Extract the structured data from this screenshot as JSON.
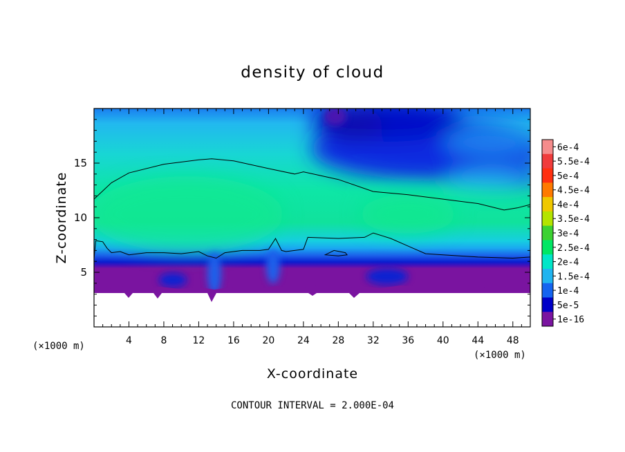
{
  "chart_data": {
    "type": "heatmap",
    "title": "density of cloud",
    "xlabel": "X-coordinate",
    "ylabel": "Z-coordinate",
    "x_unit": "(×1000 m)",
    "z_unit": "(×1000 m)",
    "xlim": [
      0,
      50
    ],
    "ylim": [
      0,
      20
    ],
    "x_ticks": [
      "4",
      "8",
      "12",
      "16",
      "20",
      "24",
      "28",
      "32",
      "36",
      "40",
      "44",
      "48"
    ],
    "y_ticks": [
      "5",
      "10",
      "15"
    ],
    "contour_interval_text": "CONTOUR INTERVAL = 2.000E-04",
    "colorbar": {
      "labels": [
        "6e-4",
        "5.5e-4",
        "5e-4",
        "4.5e-4",
        "4e-4",
        "3.5e-4",
        "3e-4",
        "2.5e-4",
        "2e-4",
        "1.5e-4",
        "1e-4",
        "5e-5",
        "1e-16"
      ],
      "colors": [
        "#f58c8c",
        "#f03c3c",
        "#ff3010",
        "#ff7a00",
        "#f0c800",
        "#b4e400",
        "#3cd232",
        "#00e664",
        "#00e6c8",
        "#20b4f0",
        "#1464f0",
        "#0000c8",
        "#7a14a0"
      ]
    },
    "contour_levels_drawn": [
      0.0002
    ],
    "cloud_base_km": 3.2,
    "upper_contour": [
      [
        0,
        11.7
      ],
      [
        2,
        13.2
      ],
      [
        4,
        14.1
      ],
      [
        8,
        14.9
      ],
      [
        12,
        15.3
      ],
      [
        13.5,
        15.4
      ],
      [
        16,
        15.2
      ],
      [
        20,
        14.5
      ],
      [
        23,
        14.0
      ],
      [
        24,
        14.2
      ],
      [
        28,
        13.5
      ],
      [
        32,
        12.4
      ],
      [
        36,
        12.1
      ],
      [
        40,
        11.7
      ],
      [
        44,
        11.3
      ],
      [
        47,
        10.7
      ],
      [
        48.5,
        10.9
      ],
      [
        50,
        11.2
      ]
    ],
    "lower_contour": [
      [
        0,
        6.2
      ],
      [
        0.2,
        7.9
      ],
      [
        1,
        7.8
      ],
      [
        1.5,
        7.2
      ],
      [
        2,
        6.8
      ],
      [
        3,
        6.9
      ],
      [
        4,
        6.6
      ],
      [
        6,
        6.8
      ],
      [
        8,
        6.8
      ],
      [
        10,
        6.7
      ],
      [
        12,
        6.9
      ],
      [
        13,
        6.5
      ],
      [
        14,
        6.3
      ],
      [
        15,
        6.8
      ],
      [
        17,
        7.0
      ],
      [
        19,
        7.0
      ],
      [
        20,
        7.1
      ],
      [
        20.8,
        8.1
      ],
      [
        21.5,
        7.0
      ],
      [
        22,
        6.9
      ],
      [
        24,
        7.1
      ],
      [
        24.5,
        8.2
      ],
      [
        28,
        8.1
      ],
      [
        31,
        8.2
      ],
      [
        32,
        8.6
      ],
      [
        34,
        8.1
      ],
      [
        36,
        7.4
      ],
      [
        38,
        6.7
      ],
      [
        40,
        6.6
      ],
      [
        44,
        6.4
      ],
      [
        48,
        6.3
      ],
      [
        50,
        6.4
      ]
    ],
    "small_contour": [
      [
        26.5,
        6.6
      ],
      [
        27.5,
        7.0
      ],
      [
        28.8,
        6.8
      ],
      [
        29,
        6.6
      ],
      [
        28,
        6.5
      ],
      [
        26.5,
        6.6
      ]
    ]
  }
}
